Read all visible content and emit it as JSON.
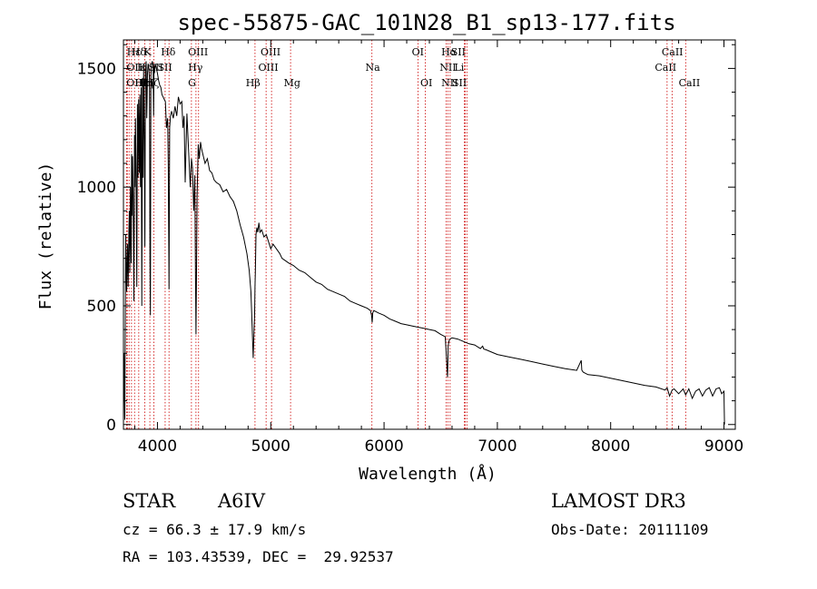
{
  "chart_data": {
    "type": "line",
    "title": "spec-55875-GAC_101N28_B1_sp13-177.fits",
    "xlabel": "Wavelength (Å)",
    "ylabel": "Flux (relative)",
    "xlim": [
      3700,
      9100
    ],
    "ylim": [
      -20,
      1620
    ],
    "xticks": [
      4000,
      5000,
      6000,
      7000,
      8000,
      9000
    ],
    "yticks": [
      0,
      500,
      1000,
      1500
    ],
    "line_color": "#cc0000",
    "series": [
      {
        "name": "flux",
        "x": [
          3700,
          3705,
          3712,
          3720,
          3728,
          3733,
          3736,
          3742,
          3748,
          3752,
          3756,
          3762,
          3768,
          3772,
          3776,
          3780,
          3786,
          3792,
          3798,
          3802,
          3806,
          3812,
          3818,
          3823,
          3828,
          3834,
          3840,
          3845,
          3850,
          3856,
          3862,
          3868,
          3873,
          3878,
          3884,
          3889,
          3894,
          3900,
          3906,
          3912,
          3918,
          3924,
          3930,
          3934,
          3938,
          3942,
          3948,
          3955,
          3962,
          3966,
          3970,
          3974,
          3980,
          3990,
          4000,
          4010,
          4020,
          4030,
          4040,
          4050,
          4060,
          4070,
          4080,
          4090,
          4096,
          4102,
          4108,
          4115,
          4125,
          4140,
          4155,
          4170,
          4185,
          4200,
          4215,
          4225,
          4235,
          4245,
          4260,
          4275,
          4290,
          4300,
          4310,
          4320,
          4330,
          4336,
          4340,
          4344,
          4350,
          4360,
          4370,
          4380,
          4390,
          4400,
          4420,
          4440,
          4460,
          4480,
          4500,
          4520,
          4550,
          4580,
          4610,
          4640,
          4670,
          4700,
          4730,
          4760,
          4790,
          4810,
          4825,
          4835,
          4845,
          4852,
          4858,
          4861,
          4864,
          4870,
          4878,
          4885,
          4895,
          4905,
          4920,
          4940,
          4960,
          4980,
          5000,
          5020,
          5050,
          5080,
          5100,
          5130,
          5160,
          5200,
          5250,
          5300,
          5350,
          5400,
          5450,
          5500,
          5550,
          5600,
          5650,
          5700,
          5750,
          5800,
          5850,
          5880,
          5890,
          5895,
          5900,
          5910,
          5950,
          6000,
          6050,
          6100,
          6150,
          6200,
          6250,
          6300,
          6350,
          6400,
          6450,
          6500,
          6540,
          6555,
          6560,
          6563,
          6566,
          6572,
          6580,
          6600,
          6650,
          6700,
          6750,
          6800,
          6850,
          6870,
          6880,
          6900,
          6950,
          7000,
          7100,
          7200,
          7300,
          7400,
          7500,
          7600,
          7700,
          7740,
          7745,
          7750,
          7760,
          7800,
          7900,
          8000,
          8100,
          8200,
          8300,
          8400,
          8480,
          8498,
          8520,
          8542,
          8560,
          8600,
          8640,
          8662,
          8690,
          8720,
          8750,
          8780,
          8810,
          8840,
          8870,
          8900,
          8930,
          8960,
          8980,
          9000,
          9005
        ],
        "values": [
          0,
          300,
          20,
          800,
          560,
          680,
          760,
          580,
          820,
          900,
          640,
          1000,
          680,
          1140,
          880,
          1130,
          960,
          520,
          1220,
          1000,
          1290,
          1030,
          580,
          1350,
          1040,
          1370,
          1060,
          1390,
          1000,
          1420,
          500,
          1460,
          1040,
          1500,
          1200,
          750,
          1490,
          1530,
          1290,
          1480,
          1520,
          1500,
          1450,
          700,
          460,
          1470,
          1520,
          1530,
          1510,
          1300,
          1510,
          1480,
          1520,
          1500,
          1480,
          1450,
          1430,
          1420,
          1390,
          1380,
          1370,
          1360,
          1250,
          1290,
          1080,
          570,
          1250,
          1300,
          1320,
          1290,
          1340,
          1300,
          1380,
          1350,
          1360,
          1250,
          1300,
          1020,
          1310,
          1150,
          1000,
          1120,
          1080,
          900,
          1050,
          600,
          380,
          600,
          960,
          1180,
          1120,
          1190,
          1160,
          1140,
          1100,
          1120,
          1070,
          1060,
          1030,
          1020,
          1010,
          980,
          990,
          960,
          940,
          900,
          840,
          790,
          720,
          650,
          560,
          420,
          280,
          390,
          470,
          580,
          640,
          800,
          830,
          810,
          850,
          810,
          820,
          790,
          800,
          770,
          740,
          760,
          740,
          720,
          700,
          690,
          680,
          670,
          650,
          640,
          620,
          600,
          590,
          570,
          560,
          550,
          540,
          520,
          510,
          500,
          490,
          480,
          460,
          430,
          470,
          480,
          470,
          460,
          445,
          435,
          425,
          420,
          415,
          410,
          405,
          400,
          395,
          380,
          370,
          250,
          200,
          250,
          330,
          350,
          360,
          365,
          360,
          350,
          340,
          335,
          320,
          330,
          318,
          315,
          305,
          295,
          285,
          275,
          265,
          255,
          245,
          235,
          228,
          270,
          230,
          225,
          220,
          210,
          205,
          195,
          185,
          175,
          165,
          158,
          145,
          155,
          120,
          145,
          150,
          130,
          150,
          125,
          150,
          110,
          140,
          150,
          120,
          145,
          155,
          120,
          150,
          155,
          130,
          140,
          0
        ]
      }
    ],
    "lines": [
      {
        "name": "Hε",
        "x": 3730,
        "row": 0,
        "ha": "start"
      },
      {
        "name": "OII",
        "x": 3727,
        "row": 1,
        "ha": "start"
      },
      {
        "name": "OIII",
        "x": 3726,
        "row": 2,
        "ha": "start"
      },
      {
        "name": "Hδ",
        "x": 3770,
        "row": 0,
        "ha": "start"
      },
      {
        "name": "Hε",
        "x": 3800,
        "row": 2,
        "ha": "start"
      },
      {
        "name": "Hη",
        "x": 3835,
        "row": 2,
        "ha": "start"
      },
      {
        "name": "K",
        "x": 3880,
        "row": 0,
        "ha": "start"
      },
      {
        "name": "H",
        "x": 3820,
        "row": 1,
        "ha": "start"
      },
      {
        "name": "ε",
        "x": 3850,
        "row": 1,
        "ha": "start"
      },
      {
        "name": "SII",
        "x": 3920,
        "row": 1,
        "ha": "start"
      },
      {
        "name": "Hζ",
        "x": 3890,
        "row": 2,
        "ha": "start"
      },
      {
        "name": "Hδ",
        "x": 4030,
        "row": 0,
        "ha": "start"
      },
      {
        "name": "SII",
        "x": 4000,
        "row": 1,
        "ha": "start"
      },
      {
        "name": "OIII",
        "x": 4270,
        "row": 0,
        "ha": "start"
      },
      {
        "name": "Hγ",
        "x": 4270,
        "row": 1,
        "ha": "start"
      },
      {
        "name": "G",
        "x": 4270,
        "row": 2,
        "ha": "start"
      },
      {
        "name": "Hβ",
        "x": 4780,
        "row": 2,
        "ha": "start"
      },
      {
        "name": "OIII",
        "x": 4910,
        "row": 0,
        "ha": "start"
      },
      {
        "name": "OIII",
        "x": 4890,
        "row": 1,
        "ha": "start"
      },
      {
        "name": "Mg",
        "x": 5115,
        "row": 2,
        "ha": "start"
      },
      {
        "name": "Na",
        "x": 5835,
        "row": 1,
        "ha": "start"
      },
      {
        "name": "OI",
        "x": 6245,
        "row": 0,
        "ha": "start"
      },
      {
        "name": "OI",
        "x": 6320,
        "row": 2,
        "ha": "start"
      },
      {
        "name": "Hα",
        "x": 6505,
        "row": 0,
        "ha": "start"
      },
      {
        "name": "SII",
        "x": 6590,
        "row": 0,
        "ha": "start"
      },
      {
        "name": "NII",
        "x": 6490,
        "row": 1,
        "ha": "start"
      },
      {
        "name": "Li",
        "x": 6620,
        "row": 1,
        "ha": "start"
      },
      {
        "name": "NII",
        "x": 6505,
        "row": 2,
        "ha": "start"
      },
      {
        "name": "SII",
        "x": 6600,
        "row": 2,
        "ha": "start"
      },
      {
        "name": "CaII",
        "x": 8450,
        "row": 0,
        "ha": "start"
      },
      {
        "name": "CaII",
        "x": 8390,
        "row": 1,
        "ha": "start"
      },
      {
        "name": "CaII",
        "x": 8600,
        "row": 2,
        "ha": "start"
      }
    ],
    "marker_positions": [
      3727,
      3734,
      3750,
      3771,
      3798,
      3835,
      3889,
      3933,
      3968,
      4068,
      4102,
      4300,
      4340,
      4363,
      4861,
      4959,
      5007,
      5175,
      5893,
      6300,
      6364,
      6548,
      6563,
      6583,
      6708,
      6716,
      6731,
      8498,
      8542,
      8662
    ]
  },
  "info": {
    "object_class": "STAR",
    "subclass": "A6IV",
    "survey": "LAMOST DR3",
    "cz": "cz = 66.3 ± 17.9 km/s",
    "obs_date": "Obs-Date: 20111109",
    "radec": "RA = 103.43539, DEC =  29.92537"
  }
}
